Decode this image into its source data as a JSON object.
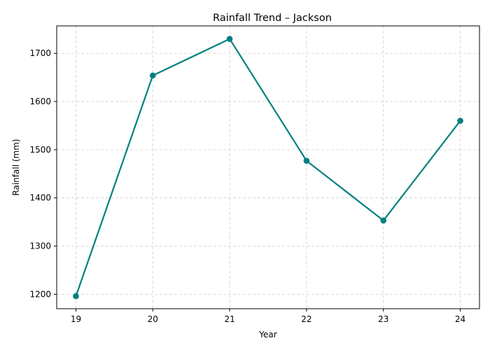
{
  "chart_data": {
    "type": "line",
    "title": "Rainfall Trend – Jackson",
    "xlabel": "Year",
    "ylabel": "Rainfall (mm)",
    "x": [
      "19",
      "20",
      "21",
      "22",
      "23",
      "24"
    ],
    "series": [
      {
        "values": [
          1196,
          1654,
          1730,
          1477,
          1353,
          1560
        ]
      }
    ],
    "xlim": [
      18.75,
      24.25
    ],
    "ylim": [
      1170,
      1757
    ],
    "yticks": [
      1200,
      1300,
      1400,
      1500,
      1600,
      1700
    ],
    "grid": true,
    "line_color": "#008080",
    "marker": "circle"
  }
}
